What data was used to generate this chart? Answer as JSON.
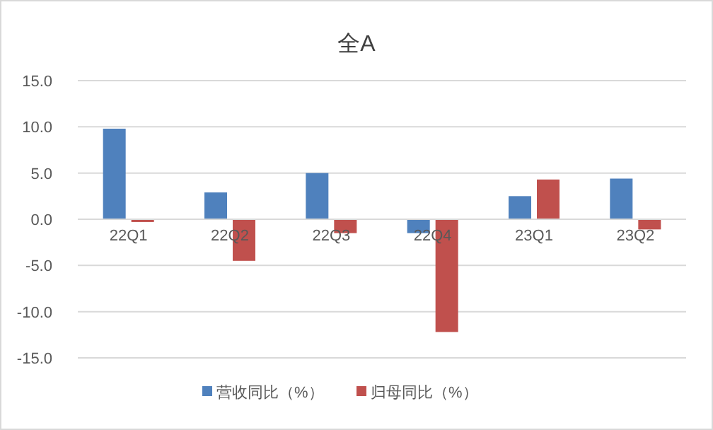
{
  "chart_data": {
    "type": "bar",
    "title": "全A",
    "categories": [
      "22Q1",
      "22Q2",
      "22Q3",
      "22Q4",
      "23Q1",
      "23Q2"
    ],
    "series": [
      {
        "name": "营收同比（%）",
        "color": "#4f81bd",
        "values": [
          9.8,
          2.9,
          5.0,
          -1.5,
          2.5,
          4.4
        ]
      },
      {
        "name": "归母同比（%）",
        "color": "#c0504d",
        "values": [
          -0.3,
          -4.5,
          -1.5,
          -12.2,
          4.3,
          -1.1
        ]
      }
    ],
    "ylim": [
      -15,
      15
    ],
    "yticks": [
      {
        "value": -15,
        "label": "-15.0"
      },
      {
        "value": -10,
        "label": "-10.0"
      },
      {
        "value": -5,
        "label": "-5.0"
      },
      {
        "value": 0,
        "label": "0.0"
      },
      {
        "value": 5,
        "label": "5.0"
      },
      {
        "value": 10,
        "label": "10.0"
      },
      {
        "value": 15,
        "label": "15.0"
      }
    ],
    "grid": "y",
    "legend": "bottom"
  }
}
